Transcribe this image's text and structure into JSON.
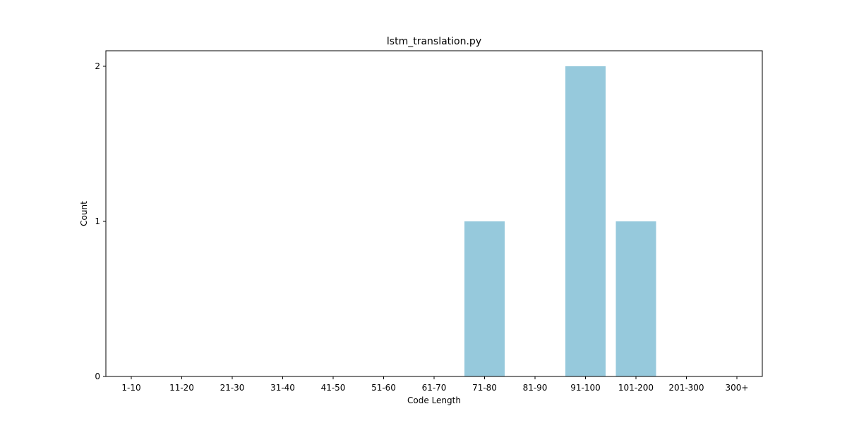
{
  "chart_data": {
    "type": "bar",
    "title": "lstm_translation.py",
    "xlabel": "Code Length",
    "ylabel": "Count",
    "categories": [
      "1-10",
      "11-20",
      "21-30",
      "31-40",
      "41-50",
      "51-60",
      "61-70",
      "71-80",
      "81-90",
      "91-100",
      "101-200",
      "201-300",
      "300+"
    ],
    "values": [
      0,
      0,
      0,
      0,
      0,
      0,
      0,
      1,
      0,
      2,
      1,
      0,
      0
    ],
    "ylim": [
      0,
      2.1
    ],
    "yticks": [
      "0",
      "1",
      "2"
    ],
    "grid": false,
    "legend": "none",
    "bar_color": "#96c9dc"
  }
}
